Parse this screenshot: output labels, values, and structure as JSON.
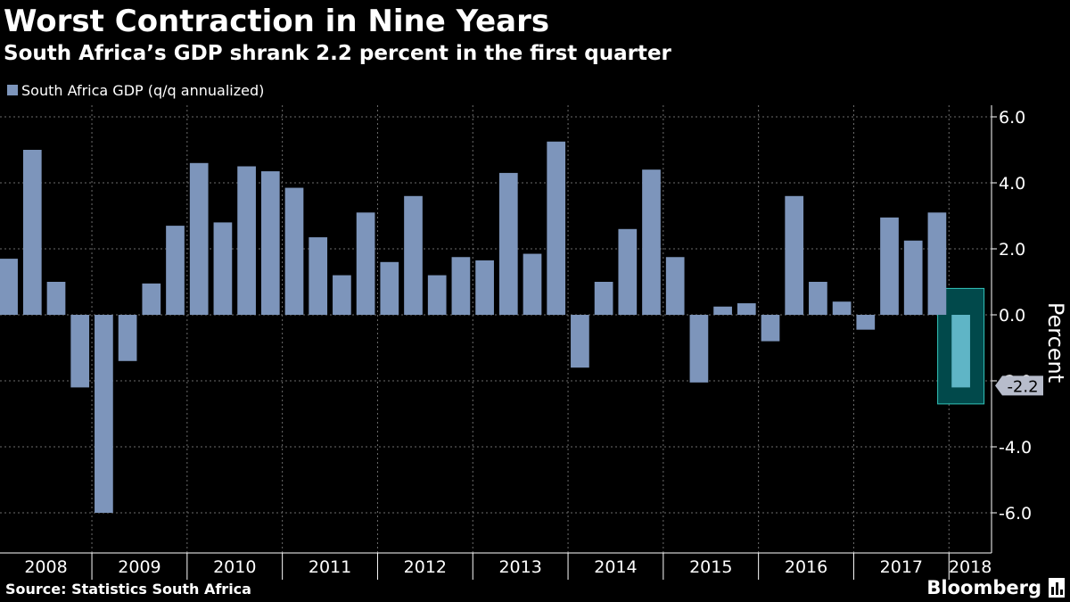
{
  "chart_data": {
    "type": "bar",
    "title": "Worst Contraction in Nine Years",
    "subtitle": "South Africa’s GDP shrank 2.2 percent in the first quarter",
    "series": [
      {
        "name": "South Africa GDP (q/q annualized)",
        "values": [
          1.7,
          5.0,
          1.0,
          -2.2,
          -6.0,
          -1.4,
          0.95,
          2.7,
          4.6,
          2.8,
          4.5,
          4.35,
          3.85,
          2.35,
          1.2,
          3.1,
          1.6,
          3.6,
          1.2,
          1.75,
          1.65,
          4.3,
          1.85,
          5.25,
          -1.6,
          1.0,
          2.6,
          4.4,
          1.75,
          -2.05,
          0.25,
          0.35,
          -0.8,
          3.6,
          1.0,
          0.4,
          -0.45,
          2.95,
          2.25,
          3.1,
          -2.2
        ]
      }
    ],
    "year_labels": [
      "2008",
      "2009",
      "2010",
      "2011",
      "2012",
      "2013",
      "2014",
      "2015",
      "2016",
      "2017",
      "2018"
    ],
    "y_ticks": [
      "6.0",
      "4.0",
      "2.0",
      "0.0",
      "-2.0",
      "-4.0",
      "-6.0"
    ],
    "ylabel": "Percent",
    "ylim": [
      -7,
      6.5
    ],
    "highlight": {
      "index": 40,
      "label": "-2.2"
    },
    "legend": "top-left",
    "grid": true
  },
  "source": "Source: Statistics South Africa",
  "brand": "Bloomberg",
  "colors": {
    "bar": "#7d95bb",
    "highlight_bar": "#5fb5c6",
    "highlight_box_fill": "#01494b",
    "highlight_box_stroke": "#33c5bb",
    "grid": "#6d6d6d",
    "background": "#000000",
    "text": "#ffffff"
  }
}
